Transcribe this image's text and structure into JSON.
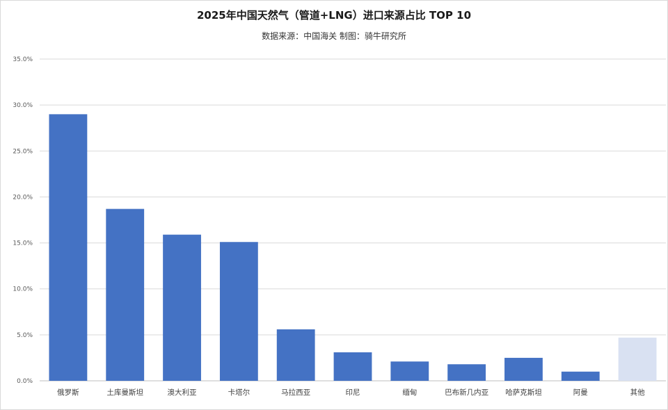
{
  "title": "2025年中国天然气（管道+LNG）进口来源占比 TOP 10",
  "subtitle": "数据来源：中国海关    制图：骑牛研究所",
  "colors": {
    "primary_bar": "#4472C4",
    "other_bar": "#D9E1F2",
    "gridline": "#D9D9D9",
    "axis_line": "#BFBFBF"
  },
  "chart_data": {
    "type": "bar",
    "title": "2025年中国天然气（管道+LNG）进口来源占比 TOP 10",
    "subtitle": "数据来源：中国海关    制图：骑牛研究所",
    "categories": [
      "俄罗斯",
      "土库曼斯坦",
      "澳大利亚",
      "卡塔尔",
      "马拉西亚",
      "印尼",
      "缅甸",
      "巴布新几内亚",
      "哈萨克斯坦",
      "阿曼",
      "其他"
    ],
    "values": [
      29.0,
      18.7,
      15.9,
      15.1,
      5.6,
      3.1,
      2.1,
      1.8,
      2.5,
      1.0,
      4.7
    ],
    "ylim": [
      0,
      35
    ],
    "yticks": [
      "0.0%",
      "5.0%",
      "10.0%",
      "15.0%",
      "20.0%",
      "25.0%",
      "30.0%",
      "35.0%"
    ],
    "ytick_values": [
      0,
      5,
      10,
      15,
      20,
      25,
      30,
      35
    ],
    "grid": true,
    "legend": "none",
    "xlabel": "",
    "ylabel": ""
  }
}
